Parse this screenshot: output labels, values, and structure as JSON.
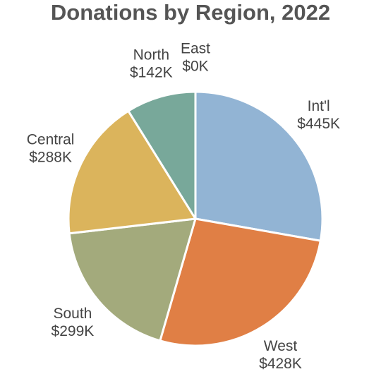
{
  "chart_data": {
    "type": "pie",
    "title": "Donations by Region, 2022",
    "categories": [
      "Int'l",
      "West",
      "South",
      "Central",
      "North",
      "East"
    ],
    "values": [
      445,
      428,
      299,
      288,
      142,
      0
    ],
    "value_labels": [
      "$445K",
      "$428K",
      "$299K",
      "$288K",
      "$142K",
      "$0K"
    ],
    "colors": [
      "#92b4d4",
      "#e07f45",
      "#a3aa7c",
      "#dbb45c",
      "#78a89a",
      "#c9736b"
    ]
  }
}
